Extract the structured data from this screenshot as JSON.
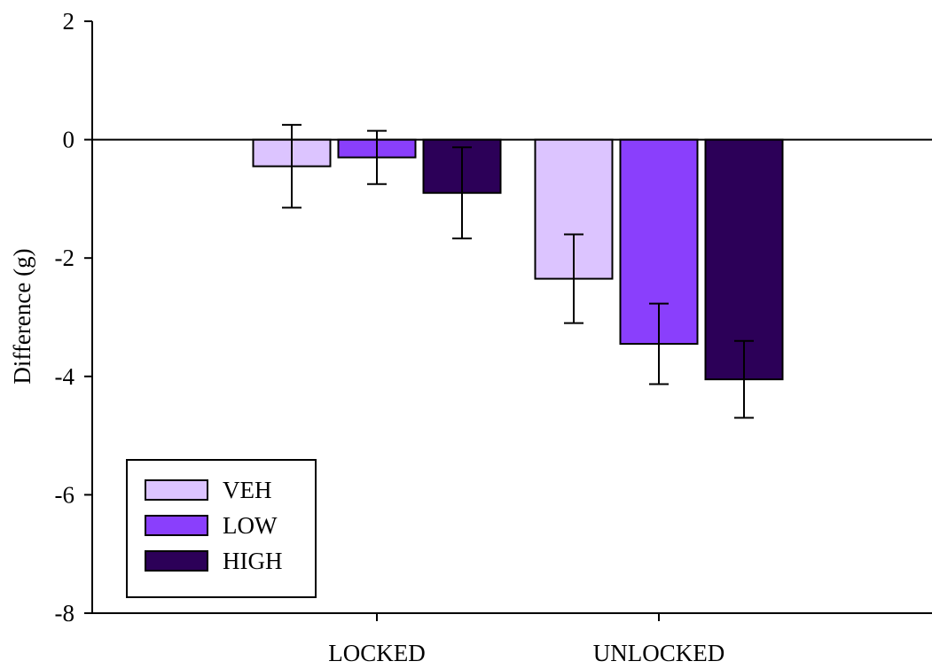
{
  "chart_data": {
    "type": "bar",
    "categories": [
      "LOCKED",
      "UNLOCKED"
    ],
    "series": [
      {
        "name": "VEH",
        "color": "#dcc4ff",
        "values": [
          -0.45,
          -2.35
        ],
        "error": [
          0.7,
          0.75
        ]
      },
      {
        "name": "LOW",
        "color": "#8a3ffc",
        "values": [
          -0.3,
          -3.45
        ],
        "error": [
          0.45,
          0.68
        ]
      },
      {
        "name": "HIGH",
        "color": "#2c0058",
        "values": [
          -0.9,
          -4.05
        ],
        "error": [
          0.77,
          0.65
        ]
      }
    ],
    "title": "",
    "xlabel": "",
    "ylabel": "Difference (g)",
    "ylim": [
      -8,
      2
    ],
    "yticks": [
      2,
      0,
      -2,
      -4,
      -6,
      -8
    ],
    "ytick_labels": [
      "2",
      "0",
      "-2",
      "-4",
      "-6",
      "-8"
    ],
    "zero_line": true,
    "grid": false,
    "legend_position": "bottom-left"
  }
}
